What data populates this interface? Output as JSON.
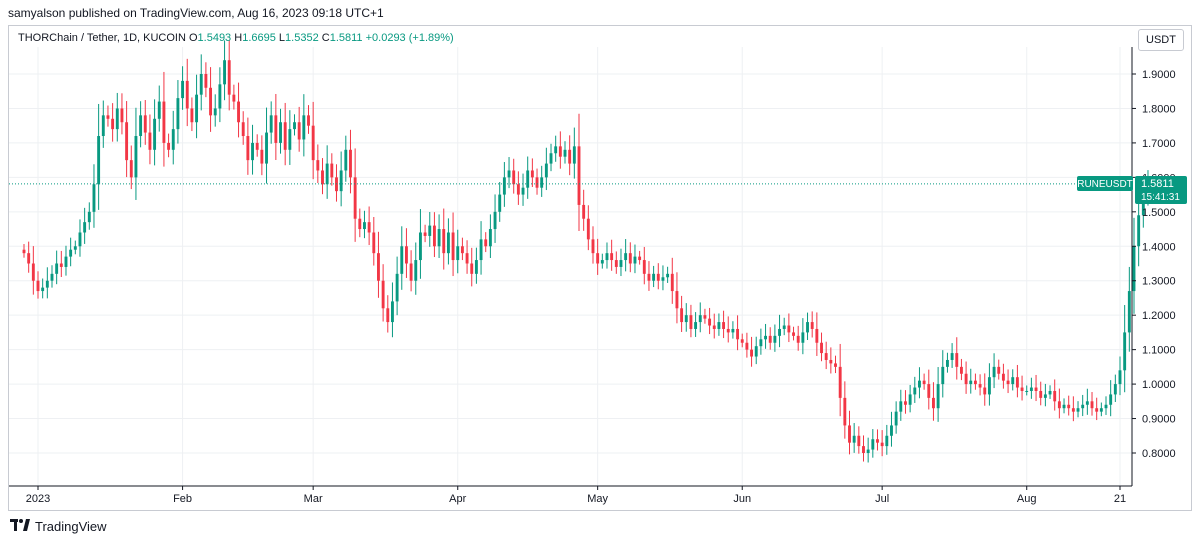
{
  "header": {
    "published_line": "samyalson published on TradingView.com, Aug 16, 2023 09:18 UTC+1"
  },
  "legend": {
    "symbol": "THORChain / Tether, 1D, KUCOIN",
    "o_label": "O",
    "o_value": "1.5493",
    "h_label": "H",
    "h_value": "1.6695",
    "l_label": "L",
    "l_value": "1.5352",
    "c_label": "C",
    "c_value": "1.5811",
    "change": "+0.0293 (+1.89%)"
  },
  "currency_button": "USDT",
  "price_tag": {
    "symbol": "RUNEUSDT",
    "price": "1.5811",
    "countdown": "15:41:31"
  },
  "footer": {
    "brand": "TradingView",
    "logo_icon": "tradingview-logo-icon"
  },
  "colors": {
    "up": "#089981",
    "down": "#f23645",
    "grid": "#eef0f3",
    "text": "#131722"
  },
  "chart_data": {
    "type": "candlestick",
    "symbol": "RUNEUSDT",
    "ylim": [
      0.7,
      1.97
    ],
    "y_ticks": [
      "0.8000",
      "0.9000",
      "1.0000",
      "1.1000",
      "1.2000",
      "1.3000",
      "1.4000",
      "1.5000",
      "1.6000",
      "1.7000",
      "1.8000",
      "1.9000"
    ],
    "x_ticks": [
      {
        "label": "2023",
        "day": 1
      },
      {
        "label": "Feb",
        "day": 32
      },
      {
        "label": "Mar",
        "day": 60
      },
      {
        "label": "Apr",
        "day": 91
      },
      {
        "label": "May",
        "day": 121
      },
      {
        "label": "Jun",
        "day": 152
      },
      {
        "label": "Jul",
        "day": 182
      },
      {
        "label": "Aug",
        "day": 213
      },
      {
        "label": "21",
        "day": 233
      }
    ],
    "first_day": -2,
    "last_price": 1.5811,
    "closes": [
      1.38,
      1.35,
      1.3,
      1.27,
      1.28,
      1.3,
      1.32,
      1.35,
      1.34,
      1.37,
      1.39,
      1.4,
      1.44,
      1.47,
      1.5,
      1.58,
      1.72,
      1.78,
      1.77,
      1.74,
      1.8,
      1.76,
      1.65,
      1.6,
      1.72,
      1.78,
      1.73,
      1.68,
      1.77,
      1.82,
      1.7,
      1.68,
      1.74,
      1.83,
      1.88,
      1.8,
      1.76,
      1.84,
      1.9,
      1.86,
      1.78,
      1.8,
      1.87,
      1.94,
      1.84,
      1.82,
      1.76,
      1.72,
      1.65,
      1.7,
      1.68,
      1.64,
      1.73,
      1.78,
      1.7,
      1.76,
      1.68,
      1.74,
      1.76,
      1.71,
      1.78,
      1.75,
      1.65,
      1.62,
      1.58,
      1.64,
      1.6,
      1.56,
      1.62,
      1.68,
      1.6,
      1.48,
      1.45,
      1.47,
      1.44,
      1.38,
      1.3,
      1.22,
      1.18,
      1.24,
      1.32,
      1.4,
      1.35,
      1.3,
      1.36,
      1.44,
      1.43,
      1.46,
      1.4,
      1.45,
      1.38,
      1.44,
      1.36,
      1.4,
      1.38,
      1.35,
      1.32,
      1.36,
      1.42,
      1.4,
      1.45,
      1.5,
      1.55,
      1.6,
      1.62,
      1.58,
      1.55,
      1.57,
      1.62,
      1.6,
      1.57,
      1.6,
      1.64,
      1.67,
      1.69,
      1.66,
      1.68,
      1.64,
      1.69,
      1.52,
      1.48,
      1.42,
      1.38,
      1.35,
      1.36,
      1.38,
      1.36,
      1.34,
      1.36,
      1.38,
      1.35,
      1.37,
      1.36,
      1.32,
      1.3,
      1.32,
      1.3,
      1.31,
      1.32,
      1.27,
      1.22,
      1.18,
      1.2,
      1.16,
      1.18,
      1.2,
      1.19,
      1.17,
      1.16,
      1.18,
      1.16,
      1.15,
      1.16,
      1.13,
      1.12,
      1.1,
      1.08,
      1.11,
      1.13,
      1.14,
      1.12,
      1.14,
      1.16,
      1.17,
      1.15,
      1.14,
      1.12,
      1.15,
      1.18,
      1.16,
      1.12,
      1.09,
      1.07,
      1.06,
      1.05,
      0.96,
      0.88,
      0.83,
      0.85,
      0.82,
      0.8,
      0.81,
      0.84,
      0.83,
      0.82,
      0.85,
      0.88,
      0.92,
      0.95,
      0.94,
      0.97,
      0.99,
      1.01,
      1.0,
      0.96,
      0.93,
      1.0,
      1.05,
      1.07,
      1.09,
      1.05,
      1.03,
      1.0,
      1.01,
      1.0,
      0.99,
      0.97,
      1.02,
      1.05,
      1.03,
      1.01,
      1.0,
      1.02,
      0.99,
      0.98,
      0.98,
      0.99,
      0.98,
      0.96,
      0.97,
      0.98,
      0.95,
      0.93,
      0.94,
      0.93,
      0.92,
      0.93,
      0.94,
      0.95,
      0.93,
      0.92,
      0.93,
      0.94,
      0.97,
      1.0,
      1.04,
      1.15,
      1.27,
      1.4,
      1.49,
      1.55,
      1.5811
    ]
  }
}
